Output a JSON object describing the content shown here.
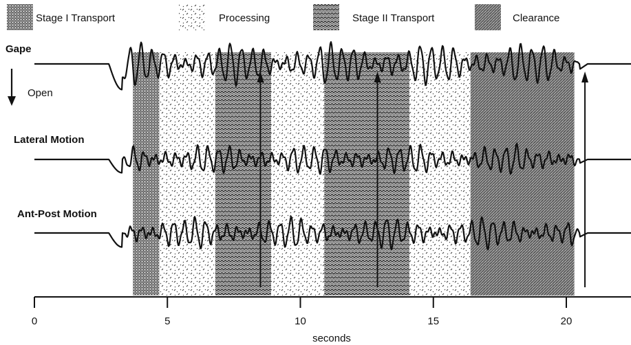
{
  "chart_data": {
    "type": "line",
    "title": "",
    "xlabel": "seconds",
    "ylabel": "",
    "xlim": [
      0,
      23
    ],
    "xticks": [
      "0",
      "5",
      "10",
      "15",
      "20"
    ],
    "xtick_values": [
      0,
      5,
      10,
      15,
      20
    ],
    "open_label": "Open",
    "legend": {
      "placement": "top",
      "entries": [
        {
          "label": "Stage I Transport",
          "pattern": "dense-stipple"
        },
        {
          "label": "Processing",
          "pattern": "sparse-dots"
        },
        {
          "label": "Stage II Transport",
          "pattern": "zigzag"
        },
        {
          "label": "Clearance",
          "pattern": "dark-stipple"
        }
      ]
    },
    "stage_bands": [
      {
        "stage": "Stage I Transport",
        "start": 3.7,
        "end": 4.7
      },
      {
        "stage": "Processing",
        "start": 4.7,
        "end": 6.8
      },
      {
        "stage": "Stage II Transport",
        "start": 6.8,
        "end": 8.9
      },
      {
        "stage": "Processing",
        "start": 8.9,
        "end": 10.9
      },
      {
        "stage": "Stage II Transport",
        "start": 10.9,
        "end": 14.1
      },
      {
        "stage": "Processing",
        "start": 14.1,
        "end": 16.4
      },
      {
        "stage": "Clearance",
        "start": 16.4,
        "end": 20.3
      }
    ],
    "swallow_markers": [
      {
        "x": 8.5,
        "from": "Ant-Post Motion",
        "to": "Gape"
      },
      {
        "x": 12.9,
        "from": "Ant-Post Motion",
        "to": "Gape"
      },
      {
        "x": 20.7,
        "from": "Ant-Post Motion",
        "to": "Gape"
      }
    ],
    "series": [
      {
        "name": "Gape",
        "baseline": "flat",
        "oscillation": {
          "start": 3.3,
          "end": 20.5,
          "cycle_period": 0.42,
          "amplitude": "large"
        }
      },
      {
        "name": "Lateral Motion",
        "baseline": "flat",
        "oscillation": {
          "start": 3.3,
          "end": 20.5,
          "cycle_period": 0.4,
          "amplitude": "medium"
        }
      },
      {
        "name": "Ant-Post Motion",
        "baseline": "flat",
        "oscillation": {
          "start": 3.3,
          "end": 20.5,
          "cycle_period": 0.4,
          "amplitude": "medium"
        }
      }
    ],
    "grid": false
  }
}
